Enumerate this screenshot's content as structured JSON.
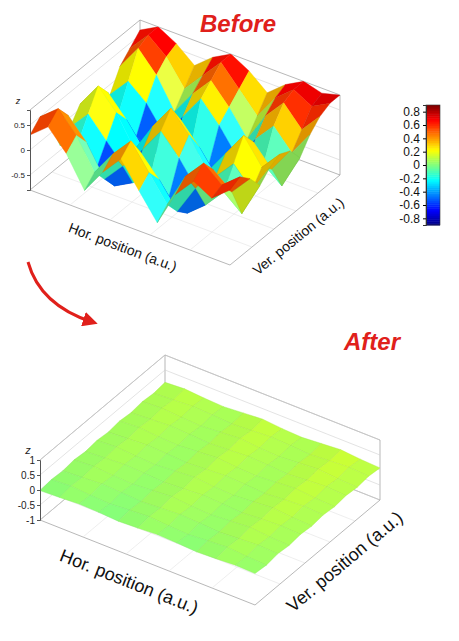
{
  "chart_data": [
    {
      "type": "surface",
      "title": "Before",
      "x_label": "Hor. position (a.u.)",
      "y_label": "Ver. position (a.u.)",
      "z_label": "z",
      "zlim": [
        -0.8,
        0.8
      ],
      "zticks": [
        -0.5,
        0,
        0.5
      ],
      "values": [
        [
          0.3,
          0.6,
          0.2,
          -0.4,
          0.1,
          0.5,
          0.0,
          -0.5,
          0.2,
          0.6,
          0.4,
          0.7
        ],
        [
          0.5,
          0.8,
          0.4,
          -0.2,
          0.3,
          0.7,
          0.2,
          -0.3,
          0.4,
          0.8,
          0.5,
          0.8
        ],
        [
          0.2,
          0.5,
          0.1,
          -0.5,
          -0.1,
          0.3,
          -0.1,
          -0.6,
          0.0,
          0.5,
          0.2,
          0.6
        ],
        [
          -0.4,
          -0.2,
          -0.6,
          -0.8,
          -0.6,
          -0.3,
          -0.6,
          -0.8,
          -0.5,
          -0.1,
          -0.4,
          0.3
        ],
        [
          -0.2,
          0.2,
          -0.2,
          -0.6,
          -0.1,
          0.4,
          0.0,
          -0.5,
          -0.1,
          0.3,
          -0.1,
          0.5
        ],
        [
          0.1,
          0.6,
          0.2,
          -0.4,
          0.2,
          0.7,
          0.3,
          -0.3,
          0.2,
          0.7,
          0.2,
          0.6
        ],
        [
          -0.1,
          0.3,
          -0.1,
          -0.6,
          -0.2,
          0.3,
          -0.1,
          -0.6,
          -0.1,
          0.4,
          0.0,
          0.5
        ],
        [
          -0.5,
          -0.3,
          -0.6,
          -0.8,
          -0.7,
          -0.4,
          -0.6,
          -0.8,
          -0.6,
          -0.2,
          -0.5,
          0.2
        ],
        [
          -0.2,
          0.2,
          -0.1,
          -0.6,
          -0.1,
          0.4,
          0.0,
          -0.5,
          0.0,
          0.4,
          0.0,
          0.5
        ],
        [
          0.2,
          0.7,
          0.3,
          -0.3,
          0.2,
          0.6,
          0.2,
          -0.3,
          0.3,
          0.7,
          0.3,
          0.7
        ],
        [
          0.4,
          0.8,
          0.5,
          0.0,
          0.4,
          0.8,
          0.4,
          0.0,
          0.5,
          0.8,
          0.6,
          0.8
        ],
        [
          0.6,
          0.8,
          0.6,
          0.3,
          0.6,
          0.8,
          0.6,
          0.3,
          0.6,
          0.8,
          0.7,
          0.8
        ]
      ],
      "colorbar": {
        "range": [
          -0.9,
          0.9
        ],
        "ticks": [
          0.8,
          0.6,
          0.4,
          0.2,
          0,
          -0.2,
          -0.4,
          -0.6,
          -0.8
        ]
      }
    },
    {
      "type": "surface",
      "title": "After",
      "x_label": "Hor. position (a.u.)",
      "y_label": "Ver. position (a.u.)",
      "z_label": "z",
      "zlim": [
        -1,
        1
      ],
      "zticks": [
        -1,
        -0.5,
        0,
        0.5,
        1
      ],
      "values": [
        [
          -0.02,
          0.01,
          0.05,
          0.03,
          -0.01,
          0.02,
          0.06,
          0.04,
          0.0,
          0.03,
          0.07,
          0.05
        ],
        [
          0.03,
          0.07,
          0.02,
          -0.01,
          0.04,
          0.08,
          0.03,
          0.0,
          0.05,
          0.09,
          0.04,
          0.01
        ],
        [
          0.0,
          0.04,
          0.08,
          0.05,
          0.01,
          0.05,
          0.09,
          0.06,
          0.02,
          0.06,
          0.1,
          0.07
        ],
        [
          0.05,
          0.09,
          0.04,
          0.01,
          0.06,
          0.11,
          0.05,
          0.02,
          0.07,
          0.12,
          0.06,
          0.03
        ],
        [
          0.01,
          0.05,
          0.09,
          0.06,
          0.02,
          0.06,
          0.1,
          0.07,
          0.03,
          0.08,
          0.11,
          0.08
        ],
        [
          0.06,
          0.1,
          0.05,
          0.02,
          0.07,
          0.12,
          0.06,
          0.03,
          0.08,
          0.13,
          0.07,
          0.04
        ],
        [
          0.02,
          0.06,
          0.1,
          0.07,
          0.03,
          0.07,
          0.11,
          0.08,
          0.04,
          0.09,
          0.13,
          0.09
        ],
        [
          0.07,
          0.11,
          0.06,
          0.03,
          0.08,
          0.13,
          0.07,
          0.04,
          0.09,
          0.14,
          0.08,
          0.05
        ],
        [
          0.03,
          0.07,
          0.11,
          0.08,
          0.04,
          0.08,
          0.12,
          0.09,
          0.05,
          0.1,
          0.14,
          0.1
        ],
        [
          0.08,
          0.12,
          0.07,
          0.04,
          0.09,
          0.14,
          0.08,
          0.05,
          0.1,
          0.15,
          0.09,
          0.06
        ],
        [
          0.04,
          0.08,
          0.12,
          0.09,
          0.05,
          0.09,
          0.13,
          0.1,
          0.06,
          0.11,
          0.15,
          0.11
        ],
        [
          0.09,
          0.13,
          0.08,
          0.05,
          0.1,
          0.15,
          0.09,
          0.06,
          0.11,
          0.16,
          0.1,
          0.07
        ]
      ]
    }
  ]
}
